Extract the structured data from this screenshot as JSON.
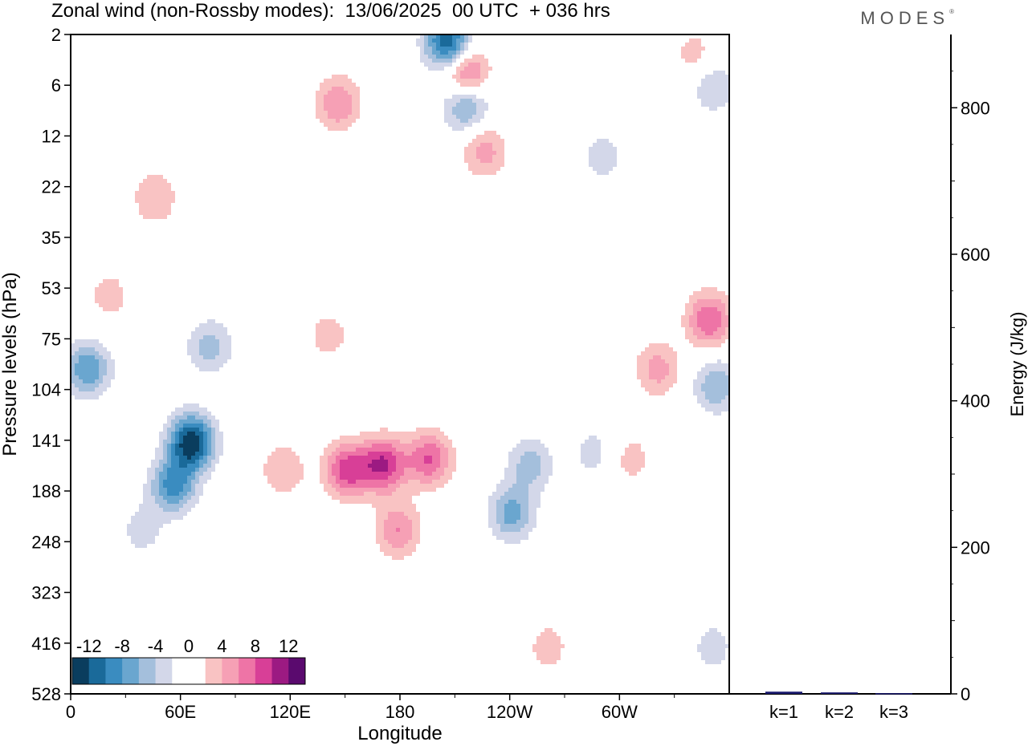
{
  "header": {
    "title": "Zonal wind (non-Rossby modes):  13/06/2025  00 UTC  + 036 hrs",
    "brand": "MODES"
  },
  "chart_data": [
    {
      "type": "heatmap",
      "xlabel": "Longitude",
      "ylabel": "Pressure levels (hPa)",
      "x_ticks": [
        "0",
        "60E",
        "120E",
        "180",
        "120W",
        "60W"
      ],
      "x_tick_values": [
        0,
        60,
        120,
        180,
        240,
        300
      ],
      "xlim": [
        0,
        360
      ],
      "y_ticks": [
        "2",
        "6",
        "12",
        "22",
        "35",
        "53",
        "75",
        "104",
        "141",
        "188",
        "248",
        "323",
        "416",
        "528"
      ],
      "colorbar": {
        "labels": [
          "-12",
          "-8",
          "-4",
          "0",
          "4",
          "8",
          "12"
        ],
        "colors": [
          "#0a3d5e",
          "#1a6a9a",
          "#3a8cc0",
          "#6aa6cf",
          "#a4bfdc",
          "#d3d7e9",
          "#ffffff",
          "#ffffff",
          "#f9c3c3",
          "#f6a0b5",
          "#ee74a6",
          "#d83f97",
          "#9c1a82",
          "#5a0a6e"
        ]
      },
      "blobs": [
        {
          "x": 65,
          "p": 141,
          "v": -14
        },
        {
          "x": 55,
          "p": 180,
          "v": -9
        },
        {
          "x": 8,
          "p": 90,
          "v": -8
        },
        {
          "x": 38,
          "p": 230,
          "v": -3
        },
        {
          "x": 75,
          "p": 78,
          "v": -5
        },
        {
          "x": 150,
          "p": 165,
          "v": 9
        },
        {
          "x": 170,
          "p": 160,
          "v": 10
        },
        {
          "x": 195,
          "p": 155,
          "v": 8
        },
        {
          "x": 178,
          "p": 230,
          "v": 6
        },
        {
          "x": 115,
          "p": 165,
          "v": 4
        },
        {
          "x": 240,
          "p": 210,
          "v": -7
        },
        {
          "x": 250,
          "p": 160,
          "v": -5
        },
        {
          "x": 285,
          "p": 150,
          "v": -3
        },
        {
          "x": 305,
          "p": 155,
          "v": 3
        },
        {
          "x": 320,
          "p": 90,
          "v": 5
        },
        {
          "x": 348,
          "p": 65,
          "v": 8
        },
        {
          "x": 352,
          "p": 100,
          "v": -6
        },
        {
          "x": 205,
          "p": 2.3,
          "v": -12
        },
        {
          "x": 215,
          "p": 4.6,
          "v": 9
        },
        {
          "x": 215,
          "p": 7.5,
          "v": -8
        },
        {
          "x": 145,
          "p": 7.5,
          "v": 6
        },
        {
          "x": 225,
          "p": 14,
          "v": 5
        },
        {
          "x": 45,
          "p": 24,
          "v": 4
        },
        {
          "x": 20,
          "p": 55,
          "v": 3
        },
        {
          "x": 350,
          "p": 6,
          "v": -4
        },
        {
          "x": 340,
          "p": 3,
          "v": 3
        },
        {
          "x": 260,
          "p": 420,
          "v": 3
        },
        {
          "x": 350,
          "p": 420,
          "v": -3
        },
        {
          "x": 140,
          "p": 72,
          "v": 3
        },
        {
          "x": 290,
          "p": 15,
          "v": -3
        }
      ]
    },
    {
      "type": "bar",
      "ylabel": "Energy (J/kg)",
      "categories": [
        "k=1",
        "k=2",
        "k=3"
      ],
      "values": [
        3,
        2,
        1
      ],
      "ylim": [
        0,
        900
      ],
      "y_ticks": [
        "0",
        "200",
        "400",
        "600",
        "800"
      ],
      "bar_color": "#1a1a6e"
    }
  ]
}
